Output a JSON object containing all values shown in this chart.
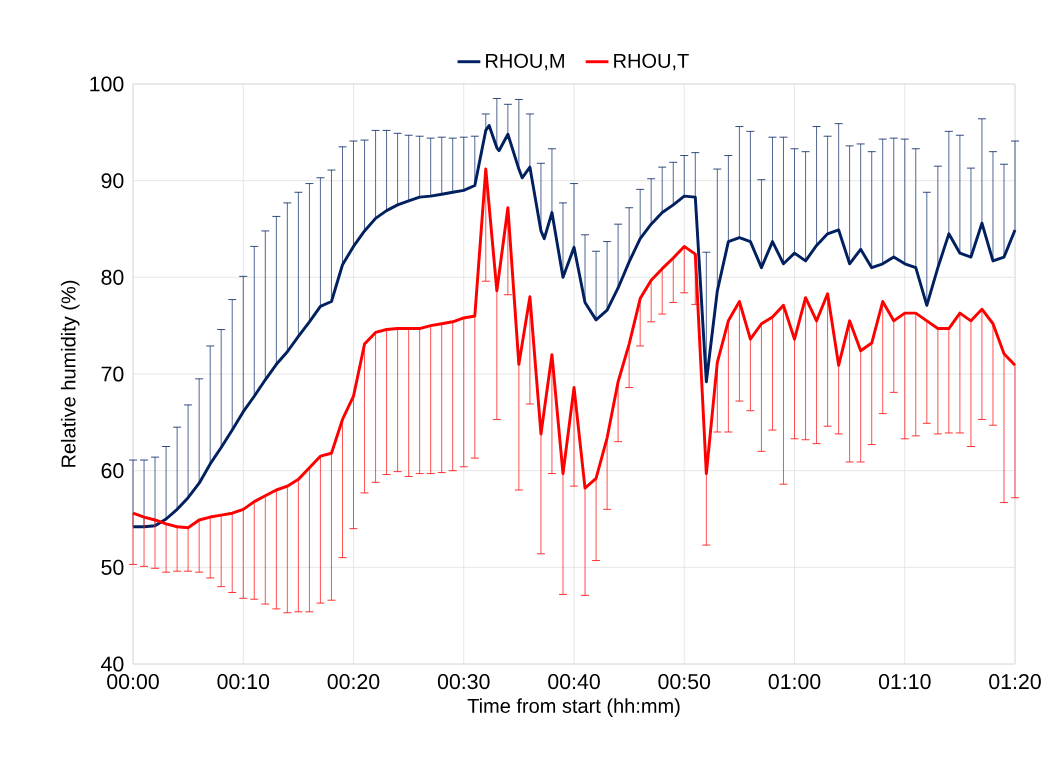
{
  "chart_data": {
    "type": "line",
    "xlabel": "Time from start (hh:mm)",
    "ylabel": "Relative humidity (%)",
    "xlim": [
      0,
      1.3333
    ],
    "ylim": [
      40,
      100
    ],
    "xticks": [
      {
        "value": 0,
        "label": "00:00"
      },
      {
        "value": 0.1667,
        "label": "00:10"
      },
      {
        "value": 0.3333,
        "label": "00:20"
      },
      {
        "value": 0.5,
        "label": "00:30"
      },
      {
        "value": 0.6667,
        "label": "00:40"
      },
      {
        "value": 0.8333,
        "label": "00:50"
      },
      {
        "value": 1,
        "label": "01:00"
      },
      {
        "value": 1.1667,
        "label": "01:10"
      },
      {
        "value": 1.3333,
        "label": "01:20"
      }
    ],
    "yticks": [
      40,
      50,
      60,
      70,
      80,
      90,
      100
    ],
    "grid": true,
    "legend": "top",
    "x": [
      0,
      0.0167,
      0.0333,
      0.05,
      0.0667,
      0.0833,
      0.1,
      0.1167,
      0.1333,
      0.15,
      0.1667,
      0.1833,
      0.2,
      0.2167,
      0.2333,
      0.25,
      0.2667,
      0.2833,
      0.3,
      0.3167,
      0.3333,
      0.35,
      0.3667,
      0.3833,
      0.4,
      0.4167,
      0.4333,
      0.45,
      0.4667,
      0.4833,
      0.5,
      0.5167,
      0.5333,
      0.55,
      0.5667,
      0.5833,
      0.6,
      0.6167,
      0.6333,
      0.65,
      0.6667,
      0.6833,
      0.7,
      0.7167,
      0.7333,
      0.75,
      0.7667,
      0.7833,
      0.8,
      0.8167,
      0.8333,
      0.85,
      0.8667,
      0.8833,
      0.9,
      0.9167,
      0.9333,
      0.95,
      0.9667,
      0.9833,
      1,
      1.0167,
      1.0333,
      1.05,
      1.0667,
      1.0833,
      1.1,
      1.1167,
      1.1333,
      1.15,
      1.1667,
      1.1833,
      1.2,
      1.2167,
      1.2333,
      1.25,
      1.2667,
      1.2833,
      1.3,
      1.3167,
      1.3333
    ],
    "series": [
      {
        "name": "RHOU,M",
        "color": "#002060",
        "x": [
          0,
          0.0167,
          0.0333,
          0.05,
          0.0667,
          0.0833,
          0.1,
          0.1167,
          0.1333,
          0.15,
          0.1667,
          0.1833,
          0.2,
          0.2167,
          0.2333,
          0.25,
          0.2667,
          0.2833,
          0.3,
          0.3167,
          0.3333,
          0.35,
          0.3667,
          0.3833,
          0.4,
          0.4167,
          0.4333,
          0.45,
          0.4667,
          0.4833,
          0.5,
          0.5167,
          0.5333,
          0.5383,
          0.55,
          0.5533,
          0.5667,
          0.5833,
          0.5883,
          0.6,
          0.6167,
          0.6217,
          0.6333,
          0.65,
          0.6667,
          0.6833,
          0.7,
          0.7167,
          0.7333,
          0.75,
          0.7667,
          0.7833,
          0.8,
          0.8167,
          0.8333,
          0.85,
          0.8667,
          0.8833,
          0.9,
          0.9167,
          0.9333,
          0.95,
          0.9667,
          0.9833,
          1,
          1.0167,
          1.0333,
          1.05,
          1.0667,
          1.0833,
          1.1,
          1.1167,
          1.1333,
          1.15,
          1.1667,
          1.1833,
          1.2,
          1.2167,
          1.2333,
          1.25,
          1.2667,
          1.2833,
          1.3,
          1.3167,
          1.3333
        ],
        "values": [
          54.2,
          54.2,
          54.3,
          55.0,
          56.0,
          57.2,
          58.7,
          60.7,
          62.4,
          64.2,
          66.1,
          67.7,
          69.4,
          71.0,
          72.3,
          73.9,
          75.4,
          77.0,
          77.5,
          81.3,
          83.2,
          84.8,
          86.1,
          86.9,
          87.5,
          87.9,
          88.3,
          88.4,
          88.6,
          88.8,
          89.0,
          89.5,
          95.2,
          95.7,
          93.4,
          93.1,
          94.8,
          91.2,
          90.3,
          91.4,
          84.8,
          84.0,
          86.7,
          80.0,
          83.1,
          77.4,
          75.6,
          76.6,
          78.9,
          81.6,
          84.0,
          85.5,
          86.7,
          87.5,
          88.4,
          88.3,
          69.2,
          78.6,
          83.7,
          84.1,
          83.7,
          81.0,
          83.7,
          81.4,
          82.5,
          81.7,
          83.3,
          84.5,
          84.9,
          81.4,
          82.9,
          81.0,
          81.4,
          82.1,
          81.4,
          81.0,
          77.1,
          81.0,
          84.5,
          82.5,
          82.1,
          85.6,
          81.7,
          82.1,
          84.9
        ],
        "errors": [
          [
            54.2,
            61.1
          ],
          [
            54.2,
            61.1
          ],
          [
            54.3,
            61.4
          ],
          [
            55.0,
            62.5
          ],
          [
            56.0,
            64.5
          ],
          [
            57.2,
            66.8
          ],
          [
            58.7,
            69.5
          ],
          [
            60.7,
            72.9
          ],
          [
            62.4,
            74.6
          ],
          [
            64.2,
            77.7
          ],
          [
            66.1,
            80.1
          ],
          [
            67.7,
            83.2
          ],
          [
            69.4,
            84.8
          ],
          [
            71.0,
            86.3
          ],
          [
            72.3,
            87.7
          ],
          [
            73.9,
            88.8
          ],
          [
            75.4,
            89.7
          ],
          [
            77.0,
            90.3
          ],
          [
            77.5,
            91.1
          ],
          [
            81.3,
            93.5
          ],
          [
            83.2,
            94.1
          ],
          [
            84.8,
            94.2
          ],
          [
            86.1,
            95.2
          ],
          [
            86.9,
            95.2
          ],
          [
            87.5,
            94.9
          ],
          [
            87.9,
            94.7
          ],
          [
            88.3,
            94.6
          ],
          [
            88.4,
            94.4
          ],
          [
            88.6,
            94.5
          ],
          [
            88.8,
            94.4
          ],
          [
            89.0,
            94.5
          ],
          [
            89.5,
            94.6
          ],
          [
            95.2,
            96.9
          ],
          null,
          [
            93.4,
            98.5
          ],
          null,
          [
            94.8,
            97.9
          ],
          [
            91.2,
            98.4
          ],
          null,
          [
            91.4,
            96.9
          ],
          [
            84.8,
            91.8
          ],
          null,
          [
            86.7,
            93.3
          ],
          [
            80.0,
            87.7
          ],
          [
            83.1,
            89.7
          ],
          [
            77.4,
            84.4
          ],
          [
            75.6,
            82.7
          ],
          [
            76.6,
            83.7
          ],
          [
            78.9,
            85.5
          ],
          [
            81.6,
            87.2
          ],
          [
            84.0,
            89.1
          ],
          [
            85.5,
            90.2
          ],
          [
            86.7,
            91.4
          ],
          [
            87.5,
            91.9
          ],
          [
            88.4,
            92.6
          ],
          [
            88.3,
            92.9
          ],
          [
            69.2,
            82.6
          ],
          [
            78.6,
            91.2
          ],
          [
            83.7,
            92.6
          ],
          [
            84.1,
            95.6
          ],
          [
            83.7,
            95.1
          ],
          [
            81.0,
            90.1
          ],
          [
            83.7,
            94.5
          ],
          [
            81.4,
            94.5
          ],
          [
            82.5,
            93.3
          ],
          [
            81.7,
            93.0
          ],
          [
            83.3,
            95.6
          ],
          [
            84.5,
            94.6
          ],
          [
            84.9,
            95.9
          ],
          [
            81.4,
            93.6
          ],
          [
            82.9,
            93.8
          ],
          [
            81.0,
            93.0
          ],
          [
            81.4,
            94.3
          ],
          [
            82.1,
            94.4
          ],
          [
            81.4,
            94.3
          ],
          [
            81.0,
            93.3
          ],
          [
            77.1,
            88.8
          ],
          [
            81.0,
            91.5
          ],
          [
            84.5,
            95.1
          ],
          [
            82.5,
            94.7
          ],
          [
            82.1,
            91.3
          ],
          [
            85.6,
            96.4
          ],
          [
            81.7,
            93.0
          ],
          [
            82.1,
            91.7
          ],
          [
            84.9,
            94.1
          ]
        ]
      },
      {
        "name": "RHOU,T",
        "color": "#ff0000",
        "values": [
          55.6,
          55.2,
          54.9,
          54.5,
          54.2,
          54.1,
          54.9,
          55.2,
          55.4,
          55.6,
          56.0,
          56.8,
          57.4,
          58.0,
          58.4,
          59.1,
          60.3,
          61.5,
          61.8,
          65.3,
          67.7,
          73.1,
          74.3,
          74.6,
          74.7,
          74.7,
          74.7,
          75.0,
          75.2,
          75.4,
          75.8,
          76.0,
          91.2,
          78.6,
          87.2,
          71.0,
          78.0,
          63.8,
          72.0,
          59.7,
          68.6,
          58.2,
          59.2,
          63.4,
          69.2,
          73.1,
          77.8,
          79.7,
          80.9,
          82.0,
          83.2,
          82.4,
          59.7,
          71.2,
          75.5,
          77.5,
          73.6,
          75.2,
          75.9,
          77.1,
          73.6,
          77.9,
          75.5,
          78.3,
          70.9,
          75.5,
          72.4,
          73.2,
          77.5,
          75.5,
          76.3,
          76.3,
          75.5,
          74.7,
          74.7,
          76.3,
          75.5,
          76.7,
          75.2,
          72.1,
          70.9
        ],
        "errors": [
          [
            50.3,
            55.6
          ],
          [
            50.1,
            55.2
          ],
          [
            49.9,
            54.9
          ],
          [
            49.5,
            54.5
          ],
          [
            49.6,
            54.2
          ],
          [
            49.6,
            54.1
          ],
          [
            49.5,
            54.9
          ],
          [
            48.9,
            55.2
          ],
          [
            48.0,
            55.4
          ],
          [
            47.4,
            55.6
          ],
          [
            46.8,
            56.0
          ],
          [
            46.7,
            56.8
          ],
          [
            46.2,
            57.4
          ],
          [
            45.7,
            58.0
          ],
          [
            45.3,
            58.4
          ],
          [
            45.4,
            59.1
          ],
          [
            45.4,
            60.3
          ],
          [
            46.3,
            61.5
          ],
          [
            46.6,
            61.8
          ],
          [
            51.0,
            65.3
          ],
          [
            54.0,
            67.7
          ],
          [
            57.7,
            73.1
          ],
          [
            58.8,
            74.3
          ],
          [
            59.6,
            74.6
          ],
          [
            59.9,
            74.7
          ],
          [
            59.4,
            74.7
          ],
          [
            59.7,
            74.7
          ],
          [
            59.7,
            75.0
          ],
          [
            59.8,
            75.2
          ],
          [
            60.0,
            75.4
          ],
          [
            60.4,
            75.8
          ],
          [
            61.3,
            76.0
          ],
          [
            79.6,
            91.2
          ],
          [
            65.3,
            78.6
          ],
          [
            78.2,
            87.2
          ],
          [
            58.0,
            71.0
          ],
          [
            66.9,
            78.0
          ],
          [
            51.4,
            63.8
          ],
          [
            59.7,
            72.0
          ],
          [
            47.2,
            59.7
          ],
          [
            58.4,
            68.6
          ],
          [
            47.1,
            58.2
          ],
          [
            50.7,
            59.2
          ],
          [
            56.0,
            63.4
          ],
          [
            63.0,
            69.2
          ],
          [
            68.6,
            73.1
          ],
          [
            72.9,
            77.8
          ],
          [
            75.4,
            79.7
          ],
          [
            76.2,
            80.9
          ],
          [
            77.4,
            82.0
          ],
          [
            78.4,
            83.2
          ],
          [
            77.2,
            82.4
          ],
          [
            52.3,
            59.7
          ],
          [
            64.0,
            71.2
          ],
          [
            64.0,
            75.5
          ],
          [
            67.2,
            77.5
          ],
          [
            66.2,
            73.6
          ],
          [
            62.0,
            75.2
          ],
          [
            64.2,
            75.9
          ],
          [
            58.6,
            77.1
          ],
          [
            63.3,
            73.6
          ],
          [
            63.2,
            77.9
          ],
          [
            62.8,
            75.5
          ],
          [
            64.6,
            78.3
          ],
          [
            63.8,
            70.9
          ],
          [
            60.9,
            75.5
          ],
          [
            60.9,
            72.4
          ],
          [
            62.7,
            73.2
          ],
          [
            65.9,
            77.5
          ],
          [
            68.1,
            75.5
          ],
          [
            63.3,
            76.3
          ],
          [
            63.6,
            76.3
          ],
          [
            64.9,
            75.5
          ],
          [
            63.8,
            74.7
          ],
          [
            63.9,
            74.7
          ],
          [
            63.9,
            76.3
          ],
          [
            62.5,
            75.5
          ],
          [
            65.3,
            76.7
          ],
          [
            64.7,
            75.2
          ],
          [
            56.7,
            72.1
          ],
          [
            57.2,
            70.9
          ]
        ]
      }
    ]
  }
}
